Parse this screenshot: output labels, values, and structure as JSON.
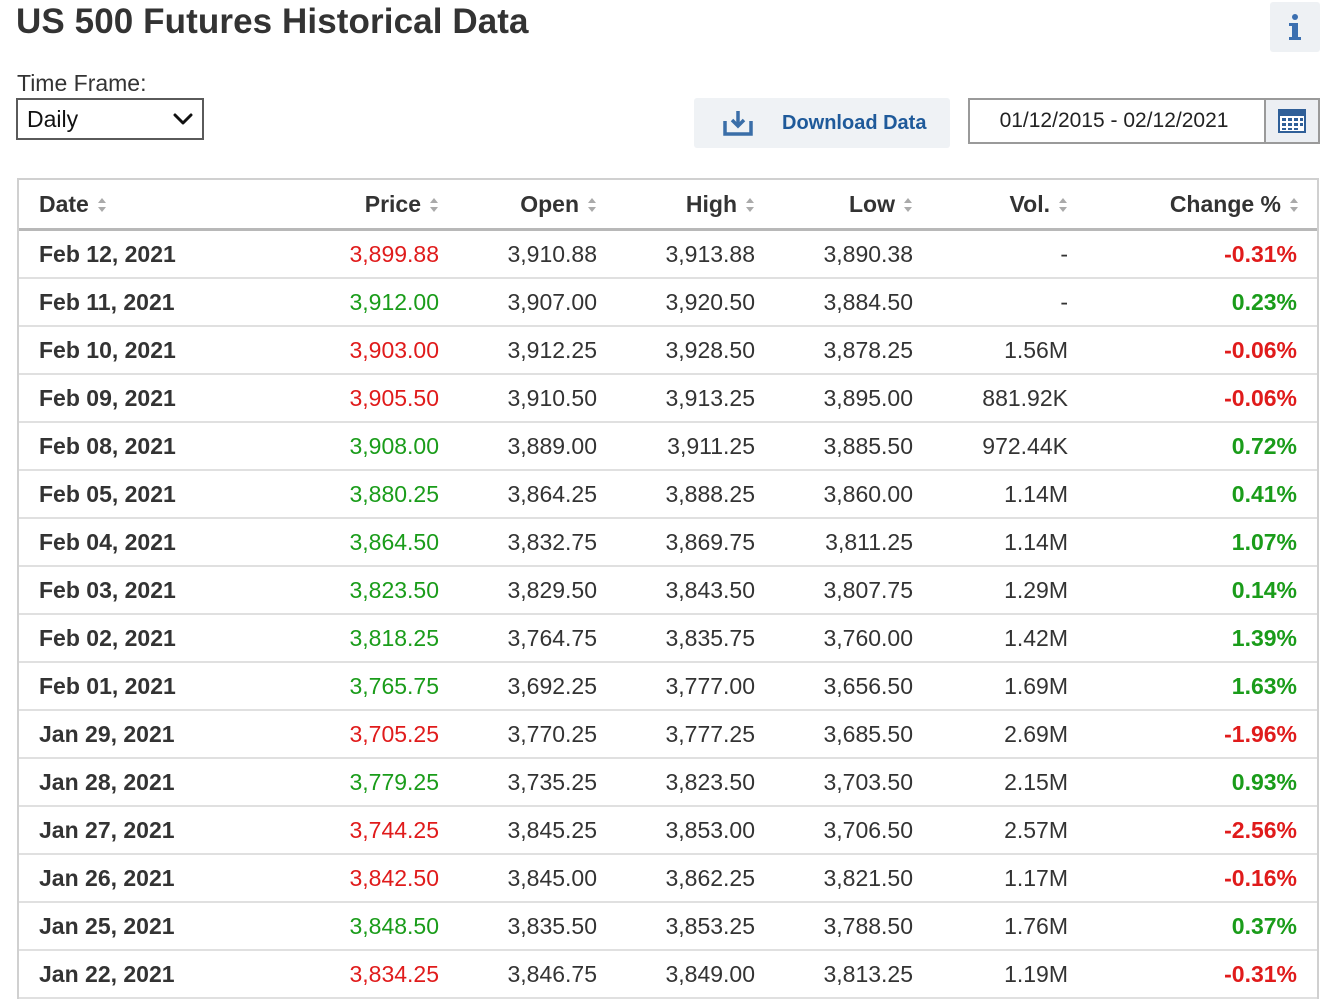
{
  "page": {
    "title": "US 500 Futures Historical Data"
  },
  "controls": {
    "time_frame_label": "Time Frame:",
    "time_frame_value": "Daily",
    "download_label": "Download Data",
    "date_range": "01/12/2015 - 02/12/2021"
  },
  "table": {
    "headers": {
      "date": "Date",
      "price": "Price",
      "open": "Open",
      "high": "High",
      "low": "Low",
      "vol": "Vol.",
      "change": "Change %"
    },
    "rows": [
      {
        "date": "Feb 12, 2021",
        "price": "3,899.88",
        "open": "3,910.88",
        "high": "3,913.88",
        "low": "3,890.38",
        "vol": "-",
        "change": "-0.31%",
        "dir": "down"
      },
      {
        "date": "Feb 11, 2021",
        "price": "3,912.00",
        "open": "3,907.00",
        "high": "3,920.50",
        "low": "3,884.50",
        "vol": "-",
        "change": "0.23%",
        "dir": "up"
      },
      {
        "date": "Feb 10, 2021",
        "price": "3,903.00",
        "open": "3,912.25",
        "high": "3,928.50",
        "low": "3,878.25",
        "vol": "1.56M",
        "change": "-0.06%",
        "dir": "down"
      },
      {
        "date": "Feb 09, 2021",
        "price": "3,905.50",
        "open": "3,910.50",
        "high": "3,913.25",
        "low": "3,895.00",
        "vol": "881.92K",
        "change": "-0.06%",
        "dir": "down"
      },
      {
        "date": "Feb 08, 2021",
        "price": "3,908.00",
        "open": "3,889.00",
        "high": "3,911.25",
        "low": "3,885.50",
        "vol": "972.44K",
        "change": "0.72%",
        "dir": "up"
      },
      {
        "date": "Feb 05, 2021",
        "price": "3,880.25",
        "open": "3,864.25",
        "high": "3,888.25",
        "low": "3,860.00",
        "vol": "1.14M",
        "change": "0.41%",
        "dir": "up"
      },
      {
        "date": "Feb 04, 2021",
        "price": "3,864.50",
        "open": "3,832.75",
        "high": "3,869.75",
        "low": "3,811.25",
        "vol": "1.14M",
        "change": "1.07%",
        "dir": "up"
      },
      {
        "date": "Feb 03, 2021",
        "price": "3,823.50",
        "open": "3,829.50",
        "high": "3,843.50",
        "low": "3,807.75",
        "vol": "1.29M",
        "change": "0.14%",
        "dir": "up"
      },
      {
        "date": "Feb 02, 2021",
        "price": "3,818.25",
        "open": "3,764.75",
        "high": "3,835.75",
        "low": "3,760.00",
        "vol": "1.42M",
        "change": "1.39%",
        "dir": "up"
      },
      {
        "date": "Feb 01, 2021",
        "price": "3,765.75",
        "open": "3,692.25",
        "high": "3,777.00",
        "low": "3,656.50",
        "vol": "1.69M",
        "change": "1.63%",
        "dir": "up"
      },
      {
        "date": "Jan 29, 2021",
        "price": "3,705.25",
        "open": "3,770.25",
        "high": "3,777.25",
        "low": "3,685.50",
        "vol": "2.69M",
        "change": "-1.96%",
        "dir": "down"
      },
      {
        "date": "Jan 28, 2021",
        "price": "3,779.25",
        "open": "3,735.25",
        "high": "3,823.50",
        "low": "3,703.50",
        "vol": "2.15M",
        "change": "0.93%",
        "dir": "up"
      },
      {
        "date": "Jan 27, 2021",
        "price": "3,744.25",
        "open": "3,845.25",
        "high": "3,853.00",
        "low": "3,706.50",
        "vol": "2.57M",
        "change": "-2.56%",
        "dir": "down"
      },
      {
        "date": "Jan 26, 2021",
        "price": "3,842.50",
        "open": "3,845.00",
        "high": "3,862.25",
        "low": "3,821.50",
        "vol": "1.17M",
        "change": "-0.16%",
        "dir": "down"
      },
      {
        "date": "Jan 25, 2021",
        "price": "3,848.50",
        "open": "3,835.50",
        "high": "3,853.25",
        "low": "3,788.50",
        "vol": "1.76M",
        "change": "0.37%",
        "dir": "up"
      },
      {
        "date": "Jan 22, 2021",
        "price": "3,834.25",
        "open": "3,846.75",
        "high": "3,849.00",
        "low": "3,813.25",
        "vol": "1.19M",
        "change": "-0.31%",
        "dir": "down"
      }
    ]
  },
  "colors": {
    "up": "#1a9c1a",
    "down": "#e01b1b",
    "link": "#1f5a9a"
  },
  "icons": {
    "info": "info-icon",
    "dropdown": "chevron-down-icon",
    "download": "download-icon",
    "calendar": "calendar-icon",
    "sort": "sort-arrows-icon"
  }
}
